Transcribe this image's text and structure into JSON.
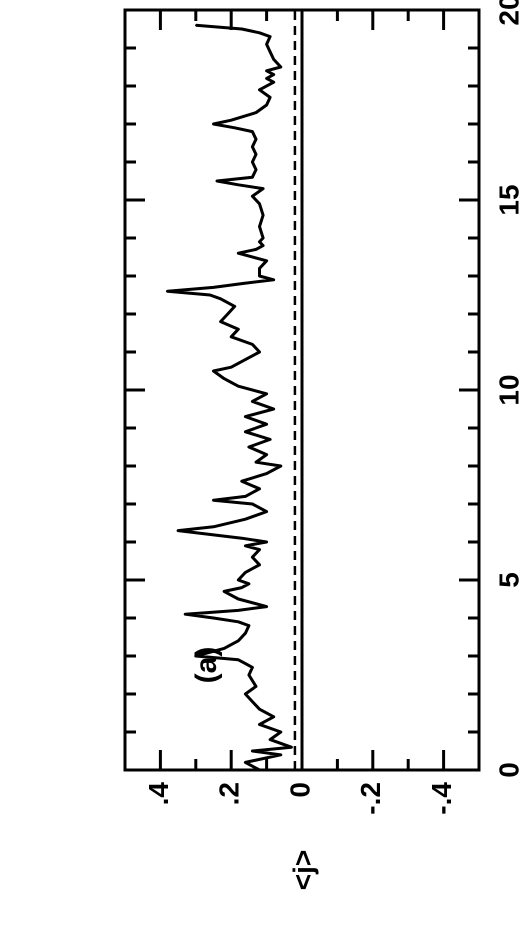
{
  "chart_data": {
    "type": "line",
    "title": "",
    "xlabel": "",
    "ylabel": "<j>",
    "annotation": "(a)",
    "xlim": [
      0,
      20
    ],
    "ylim": [
      -0.5,
      0.5
    ],
    "xticks": [
      0,
      5,
      10,
      15,
      20
    ],
    "xtick_labels": [
      "0",
      "5",
      "10",
      "15",
      "20"
    ],
    "yticks": [
      0.4,
      0.2,
      0,
      -0.2,
      -0.4
    ],
    "ytick_labels": [
      ".4",
      ".2",
      "0",
      "-.2",
      "-.4"
    ],
    "reference_lines": [
      {
        "style": "solid",
        "y": 0
      },
      {
        "style": "dashed",
        "y": 0.02
      }
    ],
    "series": [
      {
        "x": [
          0.0,
          0.2,
          0.4,
          0.5,
          0.6,
          0.8,
          1.0,
          1.2,
          1.4,
          1.6,
          1.8,
          2.0,
          2.2,
          2.5,
          2.7,
          2.8,
          2.9,
          3.0,
          3.2,
          3.4,
          3.6,
          3.8,
          3.9,
          4.0,
          4.1,
          4.2,
          4.3,
          4.5,
          4.7,
          4.8,
          4.9,
          5.0,
          5.2,
          5.4,
          5.6,
          5.8,
          5.9,
          6.0,
          6.1,
          6.3,
          6.4,
          6.6,
          6.8,
          7.0,
          7.1,
          7.2,
          7.4,
          7.6,
          7.8,
          8.0,
          8.1,
          8.3,
          8.5,
          8.7,
          8.9,
          9.1,
          9.3,
          9.5,
          9.7,
          9.9,
          10.1,
          10.3,
          10.5,
          10.6,
          10.8,
          11.0,
          11.2,
          11.4,
          11.6,
          11.8,
          12.0,
          12.2,
          12.4,
          12.5,
          12.6,
          12.7,
          12.8,
          12.9,
          13.0,
          13.2,
          13.4,
          13.6,
          13.7,
          13.8,
          13.9,
          14.0,
          14.3,
          14.6,
          14.9,
          15.1,
          15.3,
          15.4,
          15.5,
          15.6,
          15.8,
          16.0,
          16.2,
          16.4,
          16.6,
          16.8,
          16.9,
          17.0,
          17.1,
          17.3,
          17.5,
          17.7,
          17.9,
          18.1,
          18.2,
          18.3,
          18.4,
          18.5,
          18.7,
          18.9,
          19.1,
          19.3,
          19.4,
          19.5,
          19.6
        ],
        "y": [
          0.12,
          0.16,
          0.06,
          0.14,
          0.03,
          0.09,
          0.06,
          0.12,
          0.08,
          0.12,
          0.14,
          0.16,
          0.13,
          0.15,
          0.14,
          0.16,
          0.18,
          0.3,
          0.22,
          0.18,
          0.16,
          0.15,
          0.18,
          0.25,
          0.33,
          0.18,
          0.1,
          0.18,
          0.22,
          0.17,
          0.15,
          0.18,
          0.16,
          0.12,
          0.14,
          0.12,
          0.16,
          0.1,
          0.17,
          0.35,
          0.25,
          0.16,
          0.1,
          0.14,
          0.25,
          0.16,
          0.12,
          0.17,
          0.1,
          0.06,
          0.13,
          0.1,
          0.15,
          0.09,
          0.16,
          0.1,
          0.16,
          0.08,
          0.14,
          0.1,
          0.18,
          0.22,
          0.25,
          0.2,
          0.16,
          0.12,
          0.14,
          0.2,
          0.18,
          0.23,
          0.21,
          0.19,
          0.23,
          0.26,
          0.38,
          0.25,
          0.17,
          0.08,
          0.12,
          0.12,
          0.1,
          0.18,
          0.13,
          0.11,
          0.12,
          0.11,
          0.12,
          0.11,
          0.12,
          0.14,
          0.11,
          0.18,
          0.24,
          0.14,
          0.13,
          0.14,
          0.13,
          0.14,
          0.13,
          0.14,
          0.19,
          0.25,
          0.2,
          0.13,
          0.1,
          0.09,
          0.12,
          0.08,
          0.1,
          0.08,
          0.1,
          0.06,
          0.08,
          0.09,
          0.1,
          0.09,
          0.12,
          0.17,
          0.3
        ]
      }
    ]
  }
}
